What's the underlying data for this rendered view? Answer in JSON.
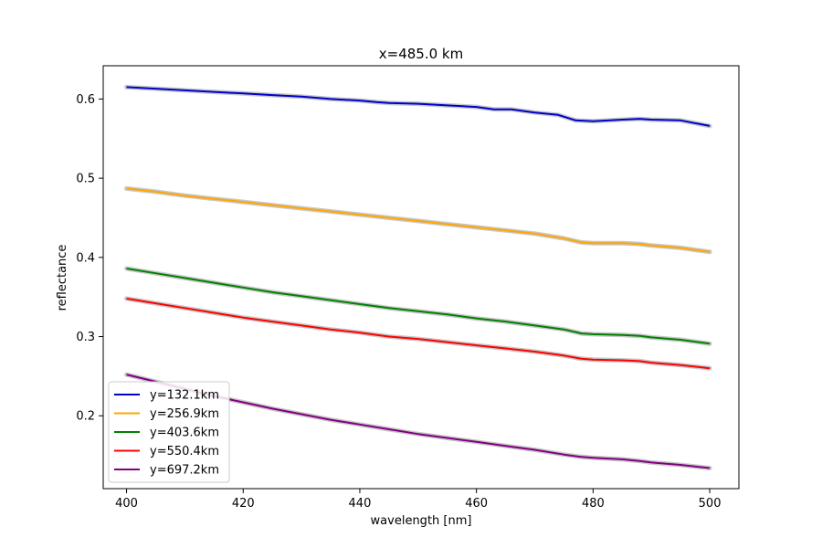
{
  "chart_data": {
    "type": "line",
    "title": "x=485.0 km",
    "xlabel": "wavelength [nm]",
    "ylabel": "reflectance",
    "xlim": [
      396,
      505
    ],
    "ylim": [
      0.108,
      0.642
    ],
    "xticks": [
      400,
      420,
      440,
      460,
      480,
      500
    ],
    "yticks": [
      0.2,
      0.3,
      0.4,
      0.5,
      0.6
    ],
    "xtick_labels": [
      "400",
      "420",
      "440",
      "460",
      "480",
      "500"
    ],
    "ytick_labels": [
      "0.2",
      "0.3",
      "0.4",
      "0.5",
      "0.6"
    ],
    "grid": false,
    "legend_position": "lower-left",
    "band_color": "#c8c8c8",
    "series": [
      {
        "name": "y=132.1km",
        "color": "#0000cc",
        "x": [
          400,
          405,
          410,
          415,
          420,
          425,
          430,
          435,
          440,
          443,
          445,
          450,
          455,
          460,
          463,
          466,
          470,
          474,
          477,
          480,
          485,
          488,
          490,
          495,
          500
        ],
        "y": [
          0.615,
          0.613,
          0.611,
          0.609,
          0.607,
          0.605,
          0.603,
          0.6,
          0.598,
          0.596,
          0.595,
          0.594,
          0.592,
          0.59,
          0.587,
          0.587,
          0.583,
          0.58,
          0.573,
          0.572,
          0.574,
          0.575,
          0.574,
          0.573,
          0.566
        ]
      },
      {
        "name": "y=256.9km",
        "color": "#ffa500",
        "x": [
          400,
          405,
          410,
          415,
          420,
          425,
          430,
          435,
          440,
          445,
          450,
          455,
          460,
          465,
          470,
          475,
          478,
          480,
          485,
          488,
          490,
          495,
          500
        ],
        "y": [
          0.487,
          0.483,
          0.478,
          0.474,
          0.47,
          0.466,
          0.462,
          0.458,
          0.454,
          0.45,
          0.446,
          0.442,
          0.438,
          0.434,
          0.43,
          0.424,
          0.419,
          0.418,
          0.418,
          0.417,
          0.415,
          0.412,
          0.407
        ]
      },
      {
        "name": "y=403.6km",
        "color": "#008000",
        "x": [
          400,
          405,
          410,
          415,
          420,
          425,
          430,
          435,
          440,
          445,
          450,
          455,
          460,
          465,
          470,
          475,
          478,
          480,
          485,
          488,
          490,
          495,
          500
        ],
        "y": [
          0.386,
          0.38,
          0.374,
          0.368,
          0.362,
          0.356,
          0.351,
          0.346,
          0.341,
          0.336,
          0.332,
          0.328,
          0.323,
          0.319,
          0.314,
          0.309,
          0.304,
          0.303,
          0.302,
          0.301,
          0.299,
          0.296,
          0.291
        ]
      },
      {
        "name": "y=550.4km",
        "color": "#ff0000",
        "x": [
          400,
          405,
          410,
          415,
          420,
          425,
          430,
          435,
          440,
          445,
          450,
          455,
          460,
          465,
          470,
          475,
          478,
          480,
          485,
          488,
          490,
          495,
          500
        ],
        "y": [
          0.348,
          0.342,
          0.336,
          0.33,
          0.324,
          0.319,
          0.314,
          0.309,
          0.305,
          0.3,
          0.297,
          0.293,
          0.289,
          0.285,
          0.281,
          0.276,
          0.272,
          0.271,
          0.27,
          0.269,
          0.267,
          0.264,
          0.26
        ]
      },
      {
        "name": "y=697.2km",
        "color": "#800080",
        "x": [
          400,
          405,
          410,
          415,
          420,
          425,
          430,
          435,
          440,
          445,
          450,
          455,
          460,
          465,
          470,
          475,
          478,
          480,
          485,
          488,
          490,
          495,
          500
        ],
        "y": [
          0.252,
          0.243,
          0.234,
          0.225,
          0.217,
          0.209,
          0.202,
          0.195,
          0.189,
          0.183,
          0.177,
          0.172,
          0.167,
          0.162,
          0.157,
          0.151,
          0.148,
          0.147,
          0.145,
          0.143,
          0.141,
          0.138,
          0.134
        ]
      }
    ]
  }
}
